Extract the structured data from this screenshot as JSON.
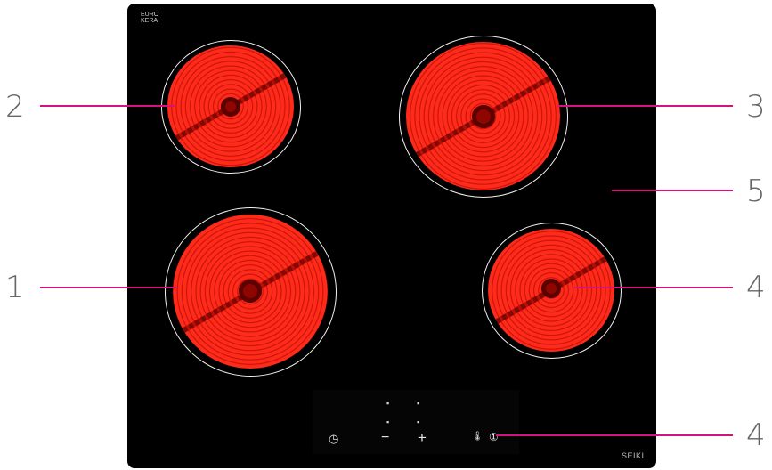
{
  "labels": {
    "zone_front_left": "1",
    "zone_rear_left": "2",
    "zone_rear_right": "3",
    "zone_front_right": "4",
    "glass_surface": "5",
    "control_panel": "4"
  },
  "hob": {
    "logo_line1": "EURO",
    "logo_line2": "KERA",
    "brand": "SEIKI"
  },
  "controls": {
    "timer_symbol": "◷",
    "minus_symbol": "−",
    "plus_symbol": "+",
    "heat_symbol": "🌡",
    "power_symbol": "①",
    "zone_icon": "▪"
  },
  "colors": {
    "leader": "#d4147a",
    "heating_zone": "#ff2a1a",
    "hob_glass": "#000000"
  }
}
